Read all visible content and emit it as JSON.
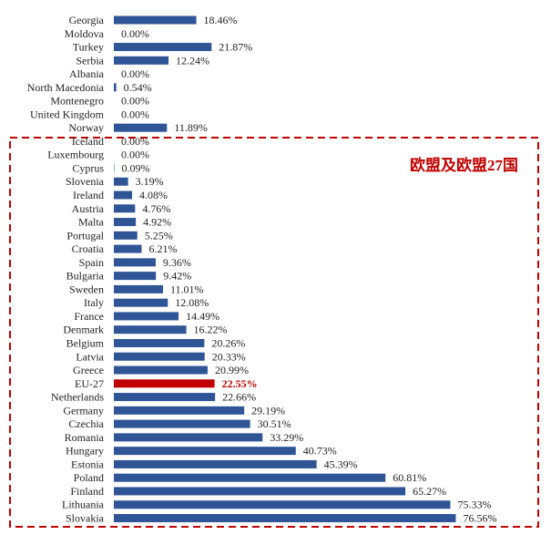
{
  "chart_data": {
    "type": "bar",
    "orientation": "horizontal",
    "title": "",
    "xlabel": "",
    "ylabel": "",
    "xlim": [
      0,
      78.5
    ],
    "value_suffix": "%",
    "bar_color": "#2f5597",
    "highlight_color": "#c00000",
    "highlight_category": "EU-27",
    "group_label": "欧盟及欧盟27国",
    "group_label_color": "#c00000",
    "group_first_category": "Iceland",
    "grid": false,
    "categories": [
      "Georgia",
      "Moldova",
      "Turkey",
      "Serbia",
      "Albania",
      "North Macedonia",
      "Montenegro",
      "United Kingdom",
      "Norway",
      "Iceland",
      "Luxembourg",
      "Cyprus",
      "Slovenia",
      "Ireland",
      "Austria",
      "Malta",
      "Portugal",
      "Croatia",
      "Spain",
      "Bulgaria",
      "Sweden",
      "Italy",
      "France",
      "Denmark",
      "Belgium",
      "Latvia",
      "Greece",
      "EU-27",
      "Netherlands",
      "Germany",
      "Czechia",
      "Romania",
      "Hungary",
      "Estonia",
      "Poland",
      "Finland",
      "Lithuania",
      "Slovakia"
    ],
    "values": [
      18.46,
      0.0,
      21.87,
      12.24,
      0.0,
      0.54,
      0.0,
      0.0,
      11.89,
      0.0,
      0.0,
      0.09,
      3.19,
      4.08,
      4.76,
      4.92,
      5.25,
      6.21,
      9.36,
      9.42,
      11.01,
      12.08,
      14.49,
      16.22,
      20.26,
      20.33,
      20.99,
      22.55,
      22.66,
      29.19,
      30.51,
      33.29,
      40.73,
      45.39,
      60.81,
      65.27,
      75.33,
      76.56
    ]
  }
}
